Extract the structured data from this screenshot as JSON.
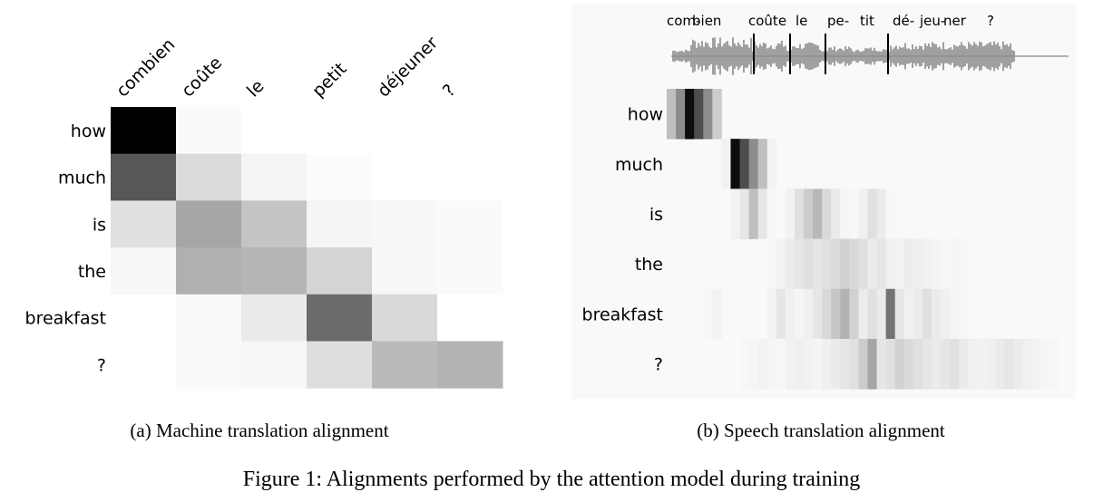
{
  "figure_caption": "Figure 1: Alignments performed by the attention model during training",
  "chart_data": [
    {
      "type": "heatmap",
      "caption": "(a) Machine translation alignment",
      "columns": [
        "combien",
        "coûte",
        "le",
        "petit",
        "déjeuner",
        "?"
      ],
      "rows": [
        "how",
        "much",
        "is",
        "the",
        "breakfast",
        "?"
      ],
      "values": [
        [
          1.0,
          0.02,
          0.0,
          0.0,
          0.0,
          0.0
        ],
        [
          0.66,
          0.14,
          0.04,
          0.01,
          0.0,
          0.0
        ],
        [
          0.12,
          0.35,
          0.23,
          0.04,
          0.03,
          0.02
        ],
        [
          0.03,
          0.31,
          0.29,
          0.17,
          0.03,
          0.02
        ],
        [
          0.0,
          0.02,
          0.08,
          0.58,
          0.15,
          0.0
        ],
        [
          0.0,
          0.02,
          0.03,
          0.13,
          0.27,
          0.3
        ]
      ],
      "value_scale": "0 = white, 1 = black"
    },
    {
      "type": "heatmap",
      "caption": "(b) Speech translation alignment",
      "syllables": [
        "com-",
        "bien",
        "coûte",
        "le",
        "pe-",
        "tit",
        "dé-",
        "jeu-",
        "ner",
        "?"
      ],
      "rows": [
        "how",
        "much",
        "is",
        "the",
        "breakfast",
        "?"
      ],
      "values": [
        [
          0.25,
          0.45,
          0.95,
          0.7,
          0.45,
          0.2,
          0.0,
          0.0,
          0.0,
          0.0,
          0.0,
          0.0,
          0.0,
          0.0,
          0.0,
          0.0,
          0.0,
          0.0,
          0.0,
          0.0,
          0.0,
          0.0,
          0.0,
          0.0,
          0.0,
          0.0,
          0.0,
          0.0,
          0.0,
          0.0,
          0.0,
          0.0,
          0.0,
          0.0,
          0.0,
          0.0,
          0.0,
          0.0,
          0.0,
          0.0,
          0.0,
          0.0,
          0.0,
          0.0
        ],
        [
          0.0,
          0.0,
          0.0,
          0.0,
          0.0,
          0.0,
          0.05,
          0.95,
          0.7,
          0.45,
          0.25,
          0.05,
          0.0,
          0.0,
          0.0,
          0.0,
          0.0,
          0.0,
          0.0,
          0.0,
          0.0,
          0.0,
          0.0,
          0.0,
          0.0,
          0.0,
          0.0,
          0.0,
          0.0,
          0.0,
          0.0,
          0.0,
          0.0,
          0.0,
          0.0,
          0.0,
          0.0,
          0.0,
          0.0,
          0.0,
          0.0,
          0.0,
          0.0,
          0.0
        ],
        [
          0.0,
          0.0,
          0.0,
          0.0,
          0.0,
          0.0,
          0.02,
          0.05,
          0.1,
          0.25,
          0.1,
          0.03,
          0.02,
          0.05,
          0.12,
          0.2,
          0.28,
          0.15,
          0.08,
          0.04,
          0.03,
          0.06,
          0.12,
          0.08,
          0.03,
          0.0,
          0.0,
          0.0,
          0.0,
          0.0,
          0.0,
          0.0,
          0.0,
          0.0,
          0.0,
          0.0,
          0.0,
          0.0,
          0.0,
          0.0,
          0.0,
          0.0,
          0.0,
          0.0
        ],
        [
          0.0,
          0.0,
          0.0,
          0.0,
          0.0,
          0.0,
          0.0,
          0.0,
          0.0,
          0.0,
          0.02,
          0.03,
          0.05,
          0.08,
          0.1,
          0.12,
          0.1,
          0.12,
          0.14,
          0.18,
          0.15,
          0.12,
          0.08,
          0.1,
          0.06,
          0.05,
          0.07,
          0.06,
          0.05,
          0.04,
          0.03,
          0.04,
          0.03,
          0.0,
          0.0,
          0.0,
          0.0,
          0.0,
          0.0,
          0.0,
          0.0,
          0.0,
          0.0,
          0.0
        ],
        [
          0.0,
          0.0,
          0.0,
          0.0,
          0.03,
          0.05,
          0.0,
          0.0,
          0.0,
          0.0,
          0.0,
          0.05,
          0.1,
          0.06,
          0.04,
          0.06,
          0.1,
          0.15,
          0.22,
          0.3,
          0.18,
          0.08,
          0.12,
          0.08,
          0.55,
          0.1,
          0.06,
          0.08,
          0.12,
          0.08,
          0.06,
          0.04,
          0.03,
          0.0,
          0.0,
          0.0,
          0.0,
          0.0,
          0.0,
          0.0,
          0.0,
          0.0,
          0.0,
          0.0
        ],
        [
          0.0,
          0.0,
          0.0,
          0.0,
          0.0,
          0.0,
          0.0,
          0.02,
          0.03,
          0.04,
          0.05,
          0.04,
          0.03,
          0.05,
          0.06,
          0.05,
          0.04,
          0.06,
          0.08,
          0.1,
          0.12,
          0.2,
          0.35,
          0.1,
          0.12,
          0.18,
          0.15,
          0.12,
          0.1,
          0.08,
          0.1,
          0.12,
          0.08,
          0.06,
          0.05,
          0.06,
          0.08,
          0.1,
          0.08,
          0.06,
          0.05,
          0.04,
          0.03,
          0.02
        ]
      ],
      "value_scale": "0 = white, 1 = black"
    }
  ]
}
